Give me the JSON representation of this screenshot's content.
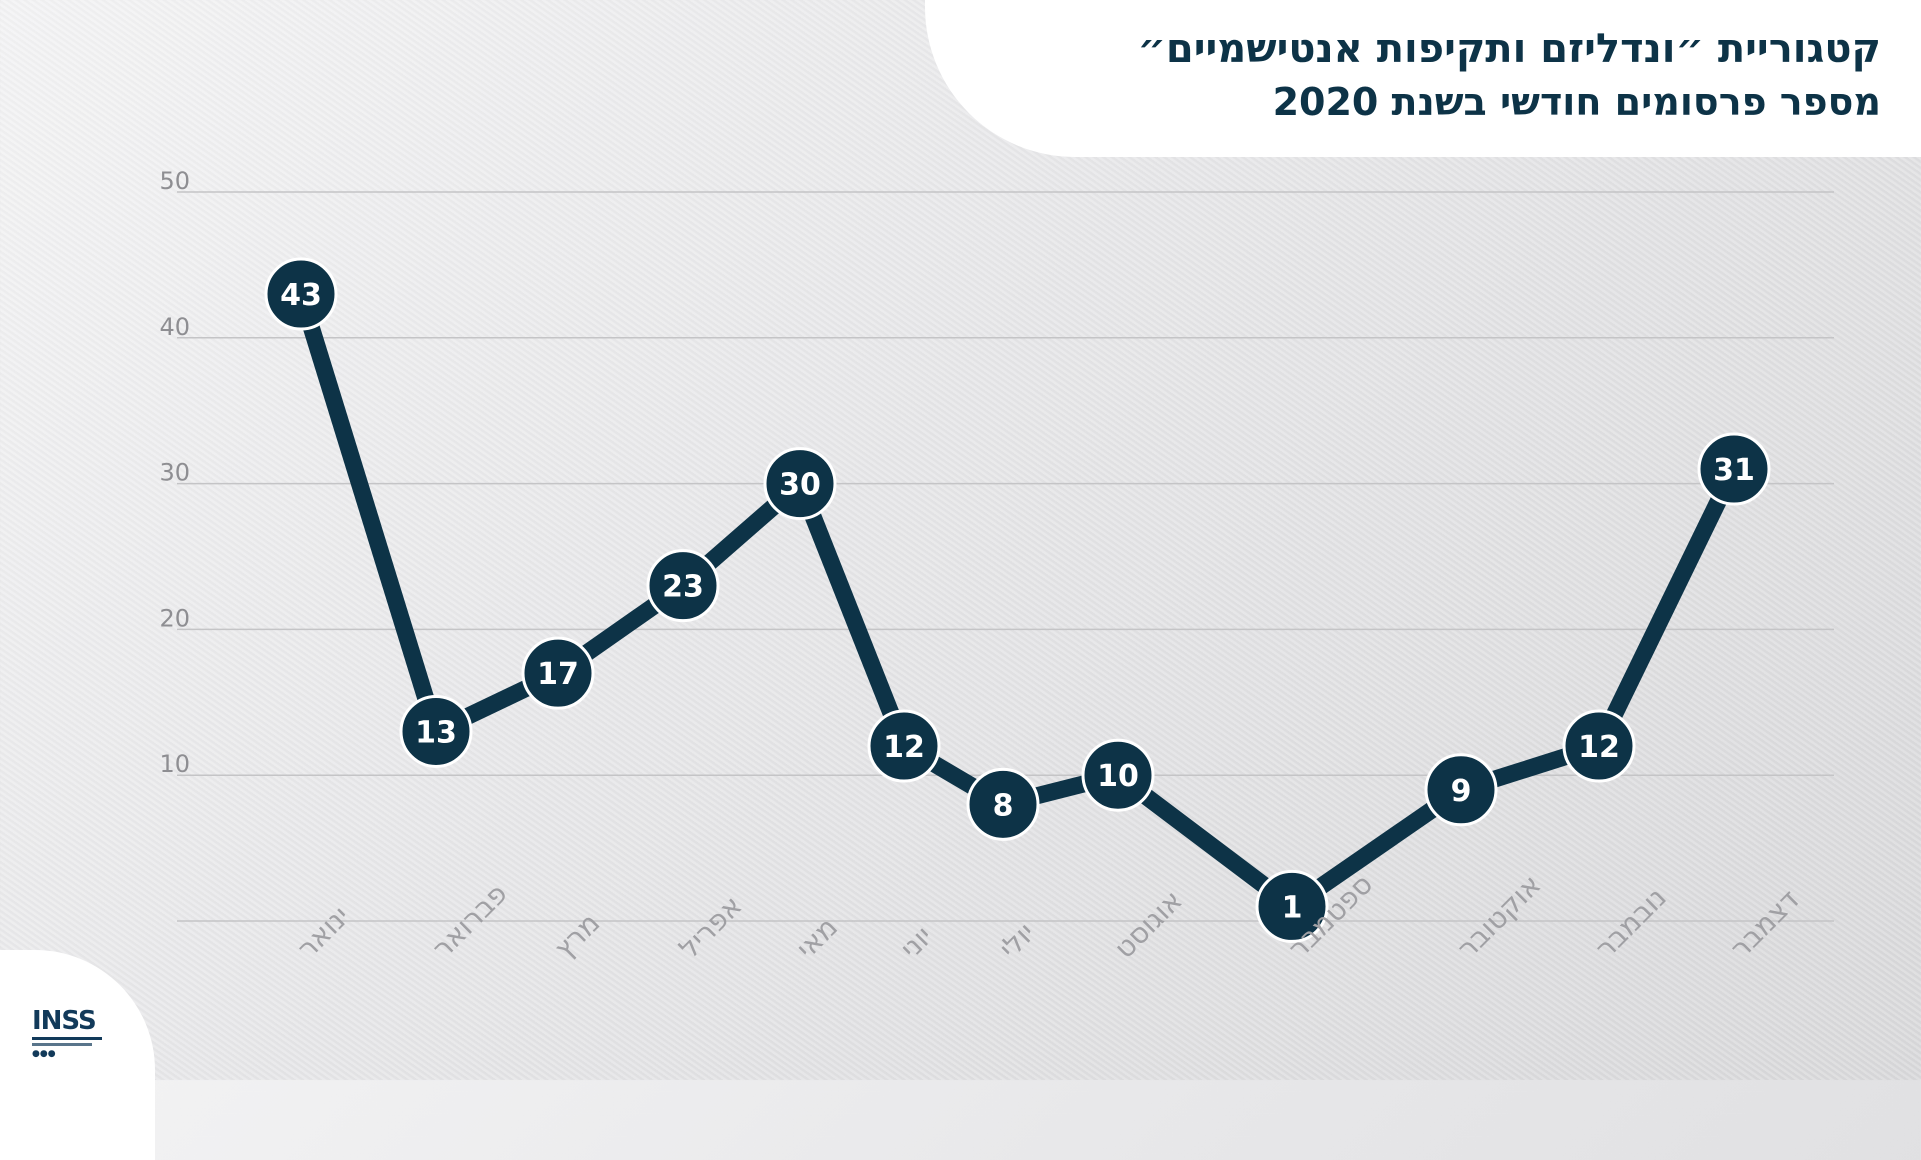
{
  "header": {
    "title": "קטגוריית ״ונדליזם ותקיפות אנטישמיים״",
    "subtitle": "מספר פרסומים חודשי בשנת 2020"
  },
  "logo": {
    "text": "INSS"
  },
  "colors": {
    "line": "#0d3347",
    "marker": "#0d3347",
    "marker_text": "#ffffff",
    "grid": "#c4c4c6",
    "tick": "#8e8e92",
    "month_label": "#a0a0a4"
  },
  "chart_data": {
    "type": "line",
    "categories": [
      "ינואר",
      "פברואר",
      "מרץ",
      "אפריל",
      "מאי",
      "יוני",
      "יולי",
      "אוגוסט",
      "ספטמבר",
      "אוקטובר",
      "נובמבר",
      "דצמבר"
    ],
    "series": [
      {
        "values": [
          43,
          13,
          17,
          23,
          30,
          12,
          8,
          10,
          1,
          9,
          12,
          31
        ]
      }
    ],
    "y_ticks": [
      10,
      20,
      30,
      40,
      50
    ],
    "ylim": [
      0,
      50
    ],
    "grid": true,
    "legend": "none"
  }
}
